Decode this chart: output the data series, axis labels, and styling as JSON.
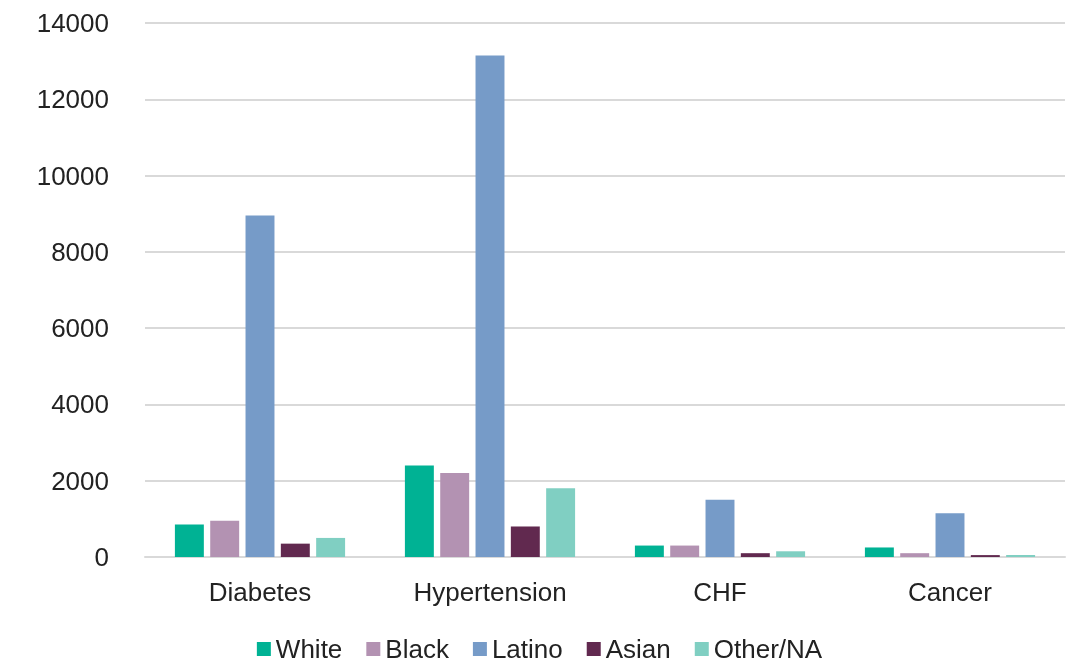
{
  "chart_data": {
    "type": "bar",
    "categories": [
      "Diabetes",
      "Hypertension",
      "CHF",
      "Cancer"
    ],
    "series": [
      {
        "name": "White",
        "color": "#00b294",
        "values": [
          850,
          2400,
          300,
          250
        ]
      },
      {
        "name": "Black",
        "color": "#b392b2",
        "values": [
          950,
          2200,
          300,
          100
        ]
      },
      {
        "name": "Latino",
        "color": "#769bc8",
        "values": [
          8950,
          13150,
          1500,
          1150
        ]
      },
      {
        "name": "Asian",
        "color": "#61294f",
        "values": [
          350,
          800,
          100,
          50
        ]
      },
      {
        "name": "Other/NA",
        "color": "#80cfc2",
        "values": [
          500,
          1800,
          150,
          50
        ]
      }
    ],
    "ylim": [
      0,
      14000
    ],
    "yticks": [
      0,
      2000,
      4000,
      6000,
      8000,
      10000,
      12000,
      14000
    ],
    "grid": "y",
    "legend": "bottom"
  }
}
